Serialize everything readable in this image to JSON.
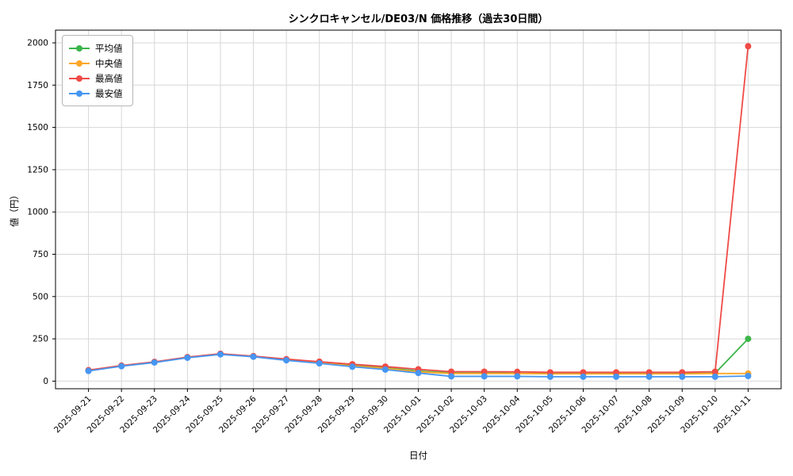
{
  "chart_data": {
    "type": "line",
    "title": "シンクロキャンセル/DE03/N 価格推移（過去30日間）",
    "xlabel": "日付",
    "ylabel": "値（円）",
    "grid": true,
    "legend_position": "upper left",
    "ylim": [
      -45,
      2075
    ],
    "yticks": [
      0,
      250,
      500,
      750,
      1000,
      1250,
      1500,
      1750,
      2000
    ],
    "categories": [
      "2025-09-21",
      "2025-09-22",
      "2025-09-23",
      "2025-09-24",
      "2025-09-25",
      "2025-09-26",
      "2025-09-27",
      "2025-09-28",
      "2025-09-29",
      "2025-09-30",
      "2025-10-01",
      "2025-10-02",
      "2025-10-03",
      "2025-10-04",
      "2025-10-05",
      "2025-10-06",
      "2025-10-07",
      "2025-10-08",
      "2025-10-09",
      "2025-10-10",
      "2025-10-11"
    ],
    "series": [
      {
        "name": "平均値",
        "color": "#3bb54a",
        "values": [
          62,
          90,
          112,
          140,
          160,
          146,
          126,
          110,
          93,
          78,
          60,
          48,
          48,
          46,
          45,
          45,
          45,
          45,
          45,
          47,
          250
        ]
      },
      {
        "name": "中央値",
        "color": "#ffa726",
        "values": [
          62,
          90,
          112,
          140,
          160,
          145,
          125,
          108,
          90,
          75,
          55,
          45,
          45,
          45,
          43,
          43,
          43,
          43,
          43,
          45,
          45
        ]
      },
      {
        "name": "最高値",
        "color": "#ef4b46",
        "values": [
          65,
          92,
          114,
          142,
          162,
          148,
          130,
          115,
          100,
          86,
          70,
          56,
          56,
          55,
          52,
          52,
          52,
          52,
          52,
          56,
          1980
        ]
      },
      {
        "name": "最安値",
        "color": "#4696f2",
        "values": [
          60,
          88,
          110,
          138,
          158,
          144,
          123,
          105,
          85,
          68,
          48,
          28,
          28,
          28,
          26,
          26,
          26,
          26,
          26,
          26,
          30
        ]
      }
    ],
    "grid_color": "#d7d7d7",
    "axis_color": "#000000"
  }
}
